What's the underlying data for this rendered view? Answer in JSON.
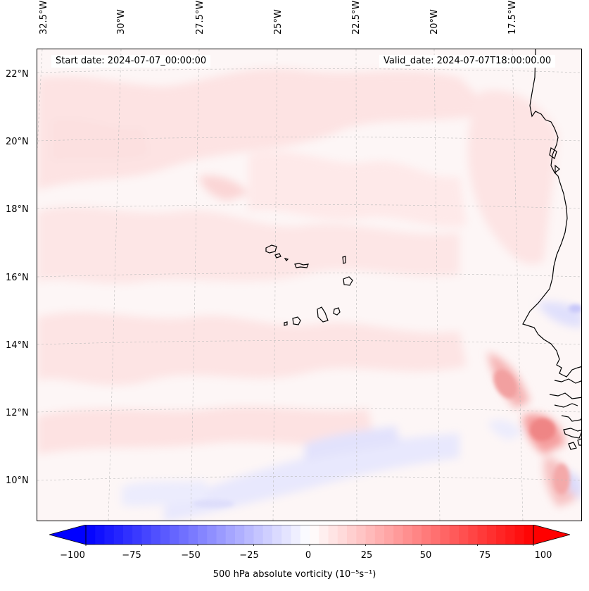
{
  "map": {
    "start_date": "Start date: 2024-07-07_00:00:00",
    "valid_date": "Valid_date: 2024-07-07T18:00:00.00",
    "lon_labels": [
      "32.5°W",
      "30°W",
      "27.5°W",
      "25°W",
      "22.5°W",
      "20°W",
      "17.5°W"
    ],
    "lat_labels": [
      "22°N",
      "20°N",
      "18°N",
      "16°N",
      "14°N",
      "12°N",
      "10°N"
    ],
    "field": "500 hPa absolute vorticity",
    "region": "Cape Verde / West Africa coast"
  },
  "colorbar": {
    "label": "500 hPa absolute vorticity (10⁻⁵s⁻¹)",
    "ticks": [
      "−100",
      "−75",
      "−50",
      "−25",
      "0",
      "25",
      "50",
      "75",
      "100"
    ],
    "min": -100,
    "max": 100,
    "levels": 48,
    "low_color": "#0000ff",
    "mid_color": "#ffffff",
    "high_color": "#ff0000"
  }
}
